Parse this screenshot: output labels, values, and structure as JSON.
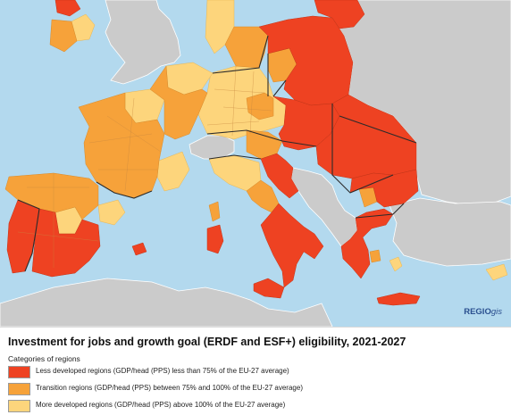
{
  "legend": {
    "title": "Investment for jobs and growth goal (ERDF and ESF+) eligibility, 2021-2027",
    "subtitle": "Categories of regions",
    "items": [
      {
        "label": "Less developed regions (GDP/head (PPS) less than 75% of the EU-27 average)",
        "color": "#ee4222"
      },
      {
        "label": "Transition regions (GDP/head (PPS) between 75% and 100% of the EU-27 average)",
        "color": "#f6a23a"
      },
      {
        "label": "More developed regions (GDP/head (PPS) above 100% of the EU-27 average)",
        "color": "#fdd57c"
      }
    ]
  },
  "credit": {
    "brand": "REGIO",
    "suffix": "gis"
  },
  "colors": {
    "sea": "#b3d9ee",
    "non_eu": "#cbcbcb",
    "less_developed": "#ee4222",
    "transition": "#f6a23a",
    "more_developed": "#fdd57c"
  }
}
